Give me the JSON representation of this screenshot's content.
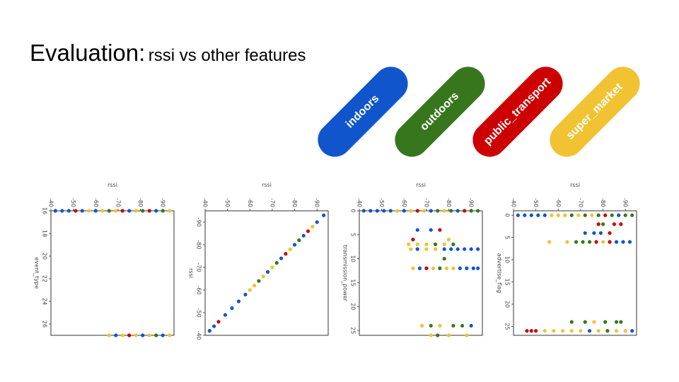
{
  "slide": {
    "title_main": "Evaluation:",
    "title_sub": "rssi vs other features"
  },
  "legend": [
    {
      "label": "indoors",
      "color": "#1155cc"
    },
    {
      "label": "outdoors",
      "color": "#38761d"
    },
    {
      "label": "public_transport",
      "color": "#cc0000"
    },
    {
      "label": "super_market",
      "color": "#f1c232"
    }
  ],
  "chart_data": [
    {
      "type": "scatter",
      "xlabel": "event_type",
      "ylabel": "rssi",
      "xlim": [
        16,
        27
      ],
      "ylim": [
        -95,
        -40
      ],
      "x_ticks": [
        16,
        18,
        20,
        22,
        24,
        26
      ],
      "y_ticks": [
        -90,
        -80,
        -70,
        -60,
        -50,
        -40
      ],
      "groups": [
        {
          "x": 16,
          "points": [
            {
              "y": -42,
              "c": "indoors"
            },
            {
              "y": -45,
              "c": "indoors"
            },
            {
              "y": -48,
              "c": "indoors"
            },
            {
              "y": -51,
              "c": "public_transport"
            },
            {
              "y": -54,
              "c": "indoors"
            },
            {
              "y": -57,
              "c": "super_market"
            },
            {
              "y": -60,
              "c": "indoors"
            },
            {
              "y": -63,
              "c": "super_market"
            },
            {
              "y": -66,
              "c": "outdoors"
            },
            {
              "y": -69,
              "c": "super_market"
            },
            {
              "y": -72,
              "c": "public_transport"
            },
            {
              "y": -75,
              "c": "indoors"
            },
            {
              "y": -78,
              "c": "super_market"
            },
            {
              "y": -81,
              "c": "outdoors"
            },
            {
              "y": -84,
              "c": "public_transport"
            },
            {
              "y": -87,
              "c": "indoors"
            },
            {
              "y": -90,
              "c": "outdoors"
            },
            {
              "y": -93,
              "c": "super_market"
            }
          ]
        },
        {
          "x": 27,
          "points": [
            {
              "y": -66,
              "c": "super_market"
            },
            {
              "y": -69,
              "c": "indoors"
            },
            {
              "y": -72,
              "c": "super_market"
            },
            {
              "y": -75,
              "c": "public_transport"
            },
            {
              "y": -78,
              "c": "super_market"
            },
            {
              "y": -81,
              "c": "indoors"
            },
            {
              "y": -84,
              "c": "super_market"
            },
            {
              "y": -87,
              "c": "outdoors"
            },
            {
              "y": -90,
              "c": "indoors"
            },
            {
              "y": -93,
              "c": "super_market"
            }
          ]
        }
      ]
    },
    {
      "type": "scatter",
      "xlabel": "rssi",
      "ylabel": "rssi",
      "xlim": [
        -95,
        -40
      ],
      "ylim": [
        -95,
        -40
      ],
      "x_ticks": [
        -90,
        -80,
        -70,
        -60,
        -50,
        -40
      ],
      "y_ticks": [
        -90,
        -80,
        -70,
        -60,
        -50,
        -40
      ],
      "groups": [
        {
          "diagonal": true,
          "points": [
            {
              "y": -93,
              "c": "indoors"
            },
            {
              "y": -90,
              "c": "indoors"
            },
            {
              "y": -88,
              "c": "super_market"
            },
            {
              "y": -86,
              "c": "public_transport"
            },
            {
              "y": -84,
              "c": "indoors"
            },
            {
              "y": -82,
              "c": "outdoors"
            },
            {
              "y": -80,
              "c": "indoors"
            },
            {
              "y": -78,
              "c": "super_market"
            },
            {
              "y": -76,
              "c": "public_transport"
            },
            {
              "y": -74,
              "c": "indoors"
            },
            {
              "y": -72,
              "c": "outdoors"
            },
            {
              "y": -70,
              "c": "super_market"
            },
            {
              "y": -68,
              "c": "indoors"
            },
            {
              "y": -66,
              "c": "super_market"
            },
            {
              "y": -64,
              "c": "outdoors"
            },
            {
              "y": -62,
              "c": "super_market"
            },
            {
              "y": -60,
              "c": "super_market"
            },
            {
              "y": -58,
              "c": "indoors"
            },
            {
              "y": -55,
              "c": "indoors"
            },
            {
              "y": -52,
              "c": "indoors"
            },
            {
              "y": -49,
              "c": "indoors"
            },
            {
              "y": -46,
              "c": "public_transport"
            },
            {
              "y": -44,
              "c": "indoors"
            },
            {
              "y": -42,
              "c": "indoors"
            }
          ]
        }
      ]
    },
    {
      "type": "scatter",
      "xlabel": "transmission_power",
      "ylabel": "rssi",
      "xlim": [
        0,
        26
      ],
      "ylim": [
        -95,
        -40
      ],
      "x_ticks": [
        0,
        5,
        10,
        15,
        20,
        25
      ],
      "y_ticks": [
        -90,
        -80,
        -70,
        -60,
        -50,
        -40
      ],
      "groups": [
        {
          "x": 0,
          "points": [
            {
              "y": -42,
              "c": "indoors"
            },
            {
              "y": -45,
              "c": "indoors"
            },
            {
              "y": -48,
              "c": "indoors"
            },
            {
              "y": -51,
              "c": "indoors"
            },
            {
              "y": -54,
              "c": "indoors"
            },
            {
              "y": -57,
              "c": "super_market"
            },
            {
              "y": -60,
              "c": "indoors"
            },
            {
              "y": -63,
              "c": "super_market"
            },
            {
              "y": -66,
              "c": "public_transport"
            },
            {
              "y": -69,
              "c": "super_market"
            },
            {
              "y": -72,
              "c": "indoors"
            },
            {
              "y": -75,
              "c": "outdoors"
            },
            {
              "y": -78,
              "c": "super_market"
            },
            {
              "y": -81,
              "c": "outdoors"
            },
            {
              "y": -84,
              "c": "indoors"
            },
            {
              "y": -87,
              "c": "public_transport"
            },
            {
              "y": -90,
              "c": "outdoors"
            },
            {
              "y": -93,
              "c": "outdoors"
            }
          ]
        },
        {
          "x": 4,
          "points": [
            {
              "y": -66,
              "c": "indoors"
            },
            {
              "y": -72,
              "c": "indoors"
            },
            {
              "y": -76,
              "c": "public_transport"
            }
          ]
        },
        {
          "x": 6,
          "points": [
            {
              "y": -64,
              "c": "public_transport"
            },
            {
              "y": -80,
              "c": "super_market"
            }
          ]
        },
        {
          "x": 7,
          "points": [
            {
              "y": -62,
              "c": "super_market"
            },
            {
              "y": -66,
              "c": "super_market"
            },
            {
              "y": -70,
              "c": "super_market"
            },
            {
              "y": -74,
              "c": "outdoors"
            },
            {
              "y": -78,
              "c": "super_market"
            },
            {
              "y": -82,
              "c": "outdoors"
            }
          ]
        },
        {
          "x": 8,
          "points": [
            {
              "y": -63,
              "c": "super_market"
            },
            {
              "y": -66,
              "c": "indoors"
            },
            {
              "y": -70,
              "c": "super_market"
            },
            {
              "y": -74,
              "c": "super_market"
            },
            {
              "y": -78,
              "c": "indoors"
            },
            {
              "y": -81,
              "c": "indoors"
            },
            {
              "y": -84,
              "c": "indoors"
            },
            {
              "y": -87,
              "c": "indoors"
            },
            {
              "y": -90,
              "c": "indoors"
            },
            {
              "y": -93,
              "c": "indoors"
            }
          ]
        },
        {
          "x": 10,
          "points": [
            {
              "y": -78,
              "c": "outdoors"
            }
          ]
        },
        {
          "x": 12,
          "points": [
            {
              "y": -64,
              "c": "super_market"
            },
            {
              "y": -67,
              "c": "indoors"
            },
            {
              "y": -70,
              "c": "public_transport"
            },
            {
              "y": -73,
              "c": "super_market"
            },
            {
              "y": -76,
              "c": "outdoors"
            },
            {
              "y": -79,
              "c": "super_market"
            },
            {
              "y": -82,
              "c": "super_market"
            },
            {
              "y": -85,
              "c": "indoors"
            },
            {
              "y": -88,
              "c": "indoors"
            },
            {
              "y": -91,
              "c": "indoors"
            },
            {
              "y": -93,
              "c": "indoors"
            }
          ]
        },
        {
          "x": 24,
          "points": [
            {
              "y": -68,
              "c": "super_market"
            },
            {
              "y": -72,
              "c": "outdoors"
            },
            {
              "y": -76,
              "c": "super_market"
            },
            {
              "y": -82,
              "c": "outdoors"
            },
            {
              "y": -86,
              "c": "outdoors"
            },
            {
              "y": -90,
              "c": "indoors"
            }
          ]
        },
        {
          "x": 26,
          "points": [
            {
              "y": -72,
              "c": "super_market"
            },
            {
              "y": -75,
              "c": "outdoors"
            },
            {
              "y": -80,
              "c": "super_market"
            },
            {
              "y": -88,
              "c": "super_market"
            }
          ]
        }
      ]
    },
    {
      "type": "scatter",
      "xlabel": "advertise_flag",
      "ylabel": "rssi",
      "xlim": [
        -1,
        27
      ],
      "ylim": [
        -95,
        -40
      ],
      "x_ticks": [
        0,
        5,
        10,
        15,
        20,
        25
      ],
      "y_ticks": [
        -90,
        -80,
        -70,
        -60,
        -50,
        -40
      ],
      "groups": [
        {
          "x": 0,
          "points": [
            {
              "y": -42,
              "c": "indoors"
            },
            {
              "y": -45,
              "c": "indoors"
            },
            {
              "y": -48,
              "c": "indoors"
            },
            {
              "y": -51,
              "c": "indoors"
            },
            {
              "y": -54,
              "c": "indoors"
            },
            {
              "y": -57,
              "c": "super_market"
            },
            {
              "y": -60,
              "c": "super_market"
            },
            {
              "y": -63,
              "c": "super_market"
            },
            {
              "y": -66,
              "c": "outdoors"
            },
            {
              "y": -69,
              "c": "super_market"
            },
            {
              "y": -72,
              "c": "outdoors"
            },
            {
              "y": -75,
              "c": "super_market"
            },
            {
              "y": -78,
              "c": "outdoors"
            },
            {
              "y": -81,
              "c": "public_transport"
            },
            {
              "y": -84,
              "c": "outdoors"
            },
            {
              "y": -87,
              "c": "indoors"
            },
            {
              "y": -90,
              "c": "outdoors"
            },
            {
              "y": -93,
              "c": "outdoors"
            }
          ]
        },
        {
          "x": 2,
          "points": [
            {
              "y": -88,
              "c": "public_transport"
            },
            {
              "y": -85,
              "c": "public_transport"
            },
            {
              "y": -80,
              "c": "outdoors"
            },
            {
              "y": -78,
              "c": "public_transport"
            }
          ]
        },
        {
          "x": 4,
          "points": [
            {
              "y": -76,
              "c": "indoors"
            },
            {
              "y": -79,
              "c": "indoors"
            },
            {
              "y": -83,
              "c": "public_transport"
            },
            {
              "y": -72,
              "c": "indoors"
            }
          ]
        },
        {
          "x": 6,
          "points": [
            {
              "y": -56,
              "c": "super_market"
            },
            {
              "y": -64,
              "c": "super_market"
            },
            {
              "y": -68,
              "c": "outdoors"
            },
            {
              "y": -71,
              "c": "outdoors"
            },
            {
              "y": -74,
              "c": "outdoors"
            },
            {
              "y": -77,
              "c": "public_transport"
            },
            {
              "y": -80,
              "c": "super_market"
            },
            {
              "y": -83,
              "c": "public_transport"
            },
            {
              "y": -86,
              "c": "indoors"
            },
            {
              "y": -89,
              "c": "indoors"
            },
            {
              "y": -92,
              "c": "indoors"
            }
          ]
        },
        {
          "x": 24,
          "points": [
            {
              "y": -88,
              "c": "outdoors"
            },
            {
              "y": -86,
              "c": "outdoors"
            },
            {
              "y": -81,
              "c": "outdoors"
            },
            {
              "y": -76,
              "c": "super_market"
            },
            {
              "y": -72,
              "c": "outdoors"
            },
            {
              "y": -66,
              "c": "outdoors"
            }
          ]
        },
        {
          "x": 26,
          "points": [
            {
              "y": -93,
              "c": "indoors"
            },
            {
              "y": -90,
              "c": "super_market"
            },
            {
              "y": -86,
              "c": "super_market"
            },
            {
              "y": -82,
              "c": "outdoors"
            },
            {
              "y": -78,
              "c": "super_market"
            },
            {
              "y": -74,
              "c": "indoors"
            },
            {
              "y": -70,
              "c": "super_market"
            },
            {
              "y": -66,
              "c": "super_market"
            },
            {
              "y": -62,
              "c": "super_market"
            },
            {
              "y": -58,
              "c": "super_market"
            },
            {
              "y": -54,
              "c": "super_market"
            },
            {
              "y": -50,
              "c": "public_transport"
            },
            {
              "y": -48,
              "c": "public_transport"
            },
            {
              "y": -46,
              "c": "public_transport"
            }
          ]
        }
      ]
    }
  ]
}
